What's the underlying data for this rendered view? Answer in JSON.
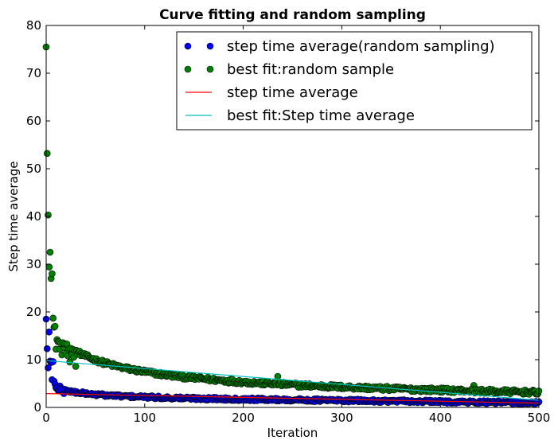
{
  "chart_data": {
    "type": "scatter",
    "title": "Curve fitting and random sampling",
    "xlabel": "Iteration",
    "ylabel": "Step time average",
    "xlim": [
      0,
      500
    ],
    "ylim": [
      0,
      80
    ],
    "x_ticks": [
      0,
      100,
      200,
      300,
      400,
      500
    ],
    "y_ticks": [
      0,
      10,
      20,
      30,
      40,
      50,
      60,
      70,
      80
    ],
    "grid": false,
    "legend_position": "top-right",
    "series": [
      {
        "name": "step time average(random sampling)",
        "kind": "markers",
        "color": "#0000ff",
        "model": {
          "form": "decay",
          "start": 18.5,
          "a": 1.2,
          "b": 1.8,
          "tau": 12,
          "c": 2.2,
          "slope": -0.0025,
          "noise": 0.3
        },
        "points": [
          [
            0,
            18.5
          ],
          [
            1,
            12.3
          ],
          [
            2,
            8.3
          ],
          [
            3,
            15.8
          ],
          [
            4,
            9.7
          ],
          [
            5,
            9.4
          ],
          [
            6,
            5.8
          ],
          [
            7,
            9.6
          ],
          [
            8,
            5.5
          ],
          [
            9,
            4.9
          ],
          [
            10,
            4.1
          ],
          [
            12,
            3.6
          ],
          [
            14,
            4.5
          ],
          [
            16,
            3.3
          ],
          [
            18,
            2.9
          ],
          [
            20,
            3.4
          ]
        ]
      },
      {
        "name": "best fit:random sample",
        "kind": "markers",
        "color": "#008000",
        "model": {
          "form": "decay",
          "start": 75.5,
          "a": 5.5,
          "b": 6.5,
          "tau": 30,
          "c": 4.8,
          "slope": -0.0035,
          "noise": 0.45
        },
        "points": [
          [
            0,
            75.5
          ],
          [
            1,
            53.2
          ],
          [
            2,
            40.3
          ],
          [
            3,
            29.4
          ],
          [
            4,
            32.5
          ],
          [
            5,
            27.0
          ],
          [
            6,
            28.0
          ],
          [
            7,
            18.7
          ],
          [
            8,
            16.8
          ],
          [
            9,
            17.0
          ],
          [
            10,
            12.2
          ],
          [
            11,
            14.2
          ],
          [
            12,
            13.8
          ],
          [
            14,
            12.2
          ],
          [
            16,
            11.0
          ],
          [
            18,
            12.6
          ],
          [
            20,
            11.3
          ],
          [
            22,
            10.8
          ],
          [
            24,
            9.5
          ],
          [
            26,
            11.1
          ],
          [
            28,
            10.5
          ],
          [
            30,
            8.6
          ],
          [
            235,
            6.5
          ],
          [
            434,
            4.6
          ]
        ]
      },
      {
        "name": "step time average",
        "kind": "line",
        "color": "#ff0000",
        "start": [
          0,
          2.9
        ],
        "end": [
          500,
          0.9
        ]
      },
      {
        "name": "best fit:Step time average",
        "kind": "line",
        "color": "#00bfbf",
        "start": [
          0,
          9.8
        ],
        "end": [
          500,
          1.5
        ]
      }
    ]
  }
}
